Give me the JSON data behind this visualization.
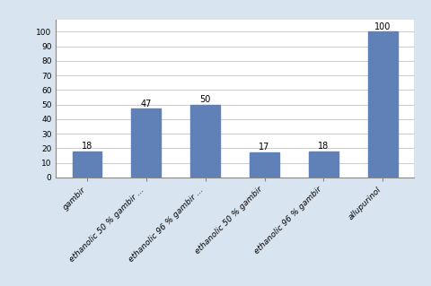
{
  "categories": [
    "gambir",
    "ethanolic 50 % gambir ...",
    "ethanolic 96 % gambir ...",
    "ethanolic 50 % gambir",
    "ethanolic 96 % gambir",
    "allupurinol"
  ],
  "values": [
    18,
    47,
    50,
    17,
    18,
    100
  ],
  "bar_color": "#6080b8",
  "ylim": [
    0,
    108
  ],
  "yticks": [
    0,
    10,
    20,
    30,
    40,
    50,
    60,
    70,
    80,
    90,
    100
  ],
  "outer_bg": "#d8e4f0",
  "plot_bg": "#ffffff",
  "label_fontsize": 6.5,
  "value_fontsize": 7.0,
  "bar_width": 0.5,
  "grid_color": "#cccccc"
}
